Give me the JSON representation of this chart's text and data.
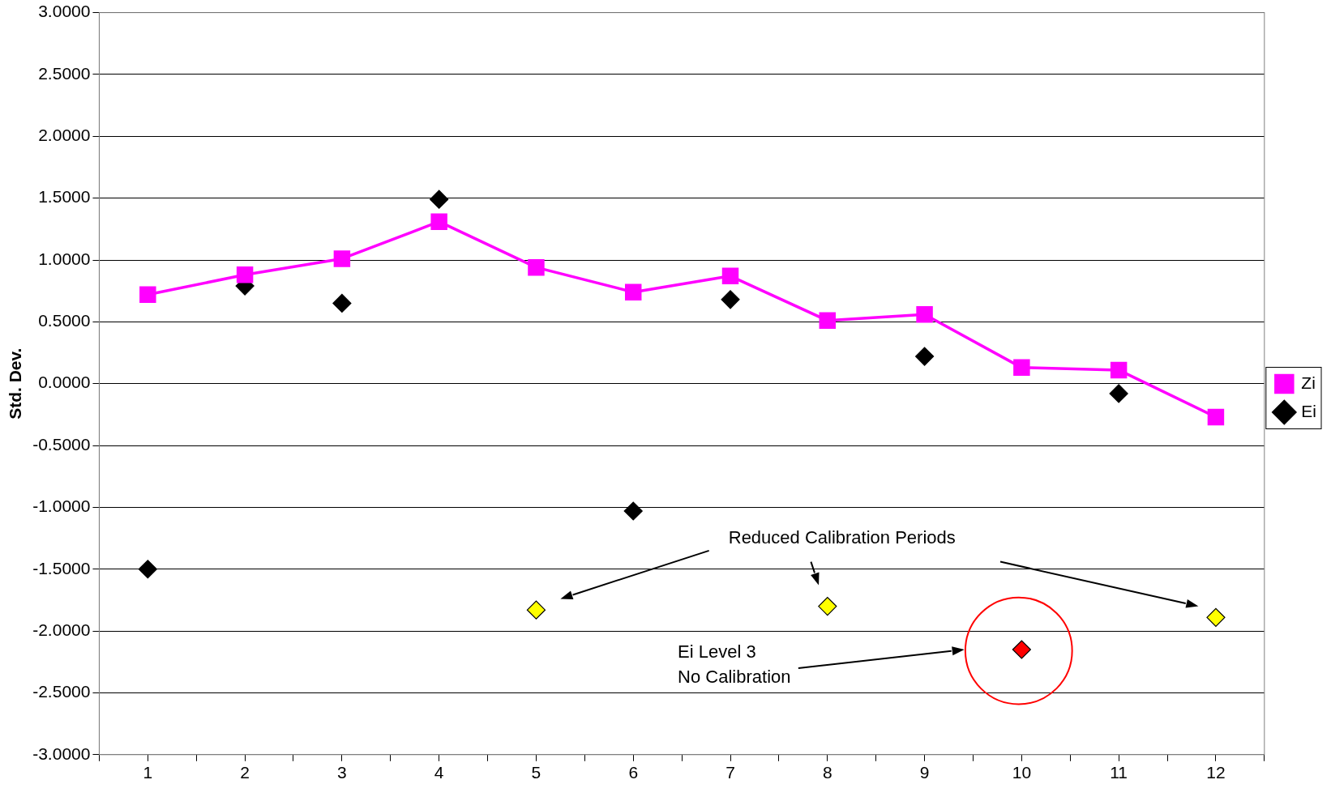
{
  "chart_data": {
    "type": "line",
    "ylabel": "Std. Dev.",
    "x": [
      1,
      2,
      3,
      4,
      5,
      6,
      7,
      8,
      9,
      10,
      11,
      12
    ],
    "xlim": [
      0.5,
      12.5
    ],
    "xticks": [
      {
        "value": 0.5,
        "label": null
      },
      1,
      {
        "value": 1.5,
        "label": null
      },
      2,
      {
        "value": 2.5,
        "label": null
      },
      3,
      {
        "value": 3.5,
        "label": null
      },
      4,
      {
        "value": 4.5,
        "label": null
      },
      5,
      {
        "value": 5.5,
        "label": null
      },
      6,
      {
        "value": 6.5,
        "label": null
      },
      7,
      {
        "value": 7.5,
        "label": null
      },
      8,
      {
        "value": 8.5,
        "label": null
      },
      9,
      {
        "value": 9.5,
        "label": null
      },
      10,
      {
        "value": 10.5,
        "label": null
      },
      11,
      {
        "value": 11.5,
        "label": null
      },
      12,
      {
        "value": 12.5,
        "label": null
      }
    ],
    "series": [
      {
        "name": "Zi",
        "color": "#ff00ff",
        "marker": "square",
        "values": [
          0.72,
          0.88,
          1.01,
          1.31,
          0.94,
          0.74,
          0.87,
          0.51,
          0.56,
          0.13,
          0.11,
          -0.27
        ]
      },
      {
        "name": "Ei",
        "type": "scatter",
        "color": "#000000",
        "marker": "diamond",
        "colors": [
          "#000000",
          "#000000",
          "#000000",
          "#000000",
          "#ffff00",
          "#000000",
          "#000000",
          "#ffff00",
          "#000000",
          "#ff0000",
          "#000000",
          "#ffff00"
        ],
        "values": [
          -1.5,
          0.79,
          0.65,
          1.49,
          -1.83,
          -1.03,
          0.68,
          -1.8,
          0.22,
          -2.15,
          -0.08,
          -1.89
        ]
      }
    ],
    "ylim": [
      -3,
      3
    ],
    "yticks": [
      {
        "value": -3,
        "label": "-3.0000"
      },
      {
        "value": -2.5,
        "label": "-2.5000"
      },
      {
        "value": -2,
        "label": "-2.0000"
      },
      {
        "value": -1.5,
        "label": "-1.5000"
      },
      {
        "value": -1,
        "label": "-1.0000"
      },
      {
        "value": -0.5,
        "label": "-0.5000"
      },
      {
        "value": 0,
        "label": "0.0000"
      },
      {
        "value": 0.5,
        "label": "0.5000"
      },
      {
        "value": 1,
        "label": "1.0000"
      },
      {
        "value": 1.5,
        "label": "1.5000"
      },
      {
        "value": 2,
        "label": "2.0000"
      },
      {
        "value": 2.5,
        "label": "2.5000"
      },
      {
        "value": 3,
        "label": "3.0000"
      }
    ],
    "grid": "y",
    "legend": "right",
    "annotations": [
      "Reduced Calibration Periods",
      "Ei Level 3\nNo Calibration"
    ]
  }
}
